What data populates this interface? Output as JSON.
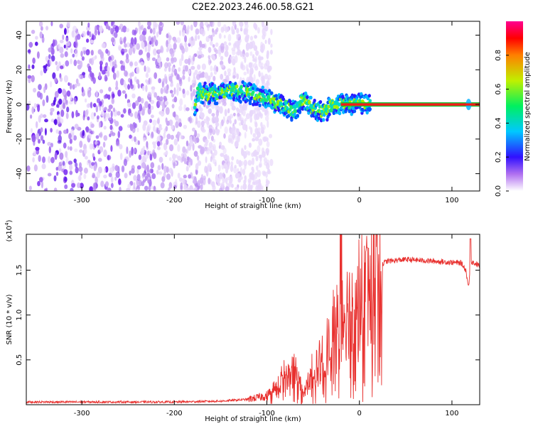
{
  "title": "C2E2.2023.246.00.58.G21",
  "chart_data": [
    {
      "type": "heatmap",
      "xlabel": "Height of straight line (km)",
      "ylabel": "Frequency (Hz)",
      "xlim": [
        -360,
        130
      ],
      "ylim": [
        -50,
        48
      ],
      "xticks": [
        -300,
        -200,
        -100,
        0,
        100
      ],
      "yticks": [
        -40,
        -20,
        0,
        20,
        40
      ],
      "colorbar": {
        "label": "Normalized spectral amplitude",
        "range": [
          0,
          1
        ],
        "ticks": [
          0.0,
          0.2,
          0.4,
          0.6,
          0.8
        ]
      },
      "features": {
        "noise_region_x": [
          -360,
          -120
        ],
        "signal_track": {
          "x": [
            -175,
            -160,
            -140,
            -120,
            -100,
            -85,
            -70,
            -60,
            -50,
            -40,
            -30,
            -20,
            -10,
            0,
            10,
            130
          ],
          "y": [
            7,
            6,
            8,
            7,
            3,
            0,
            -4,
            3,
            -2,
            -4,
            -1,
            0,
            0,
            1,
            0,
            0
          ]
        }
      }
    },
    {
      "type": "line",
      "xlabel": "Height of straight line (km)",
      "ylabel": "SNR (10 * v/v)",
      "multiplier": "(x10",
      "multiplier_exp": "4",
      "multiplier_close": ")",
      "xlim": [
        -360,
        130
      ],
      "ylim": [
        0,
        1.9
      ],
      "xticks": [
        -300,
        -200,
        -100,
        0,
        100
      ],
      "yticks": [
        0.5,
        1.0,
        1.5
      ],
      "ytick_labels": [
        "0.5",
        "1.0",
        "1.5"
      ],
      "color": "#e8302e",
      "x": [
        -360,
        -300,
        -200,
        -150,
        -120,
        -100,
        -90,
        -80,
        -70,
        -60,
        -50,
        -40,
        -30,
        -20,
        -10,
        0,
        10,
        20,
        30,
        50,
        80,
        110,
        115,
        118,
        120,
        130
      ],
      "y": [
        0.03,
        0.03,
        0.03,
        0.04,
        0.06,
        0.1,
        0.2,
        0.35,
        0.4,
        0.15,
        0.4,
        0.5,
        0.8,
        1.0,
        1.1,
        1.2,
        1.4,
        1.55,
        1.6,
        1.62,
        1.6,
        1.58,
        1.5,
        1.3,
        1.6,
        1.55
      ]
    }
  ]
}
